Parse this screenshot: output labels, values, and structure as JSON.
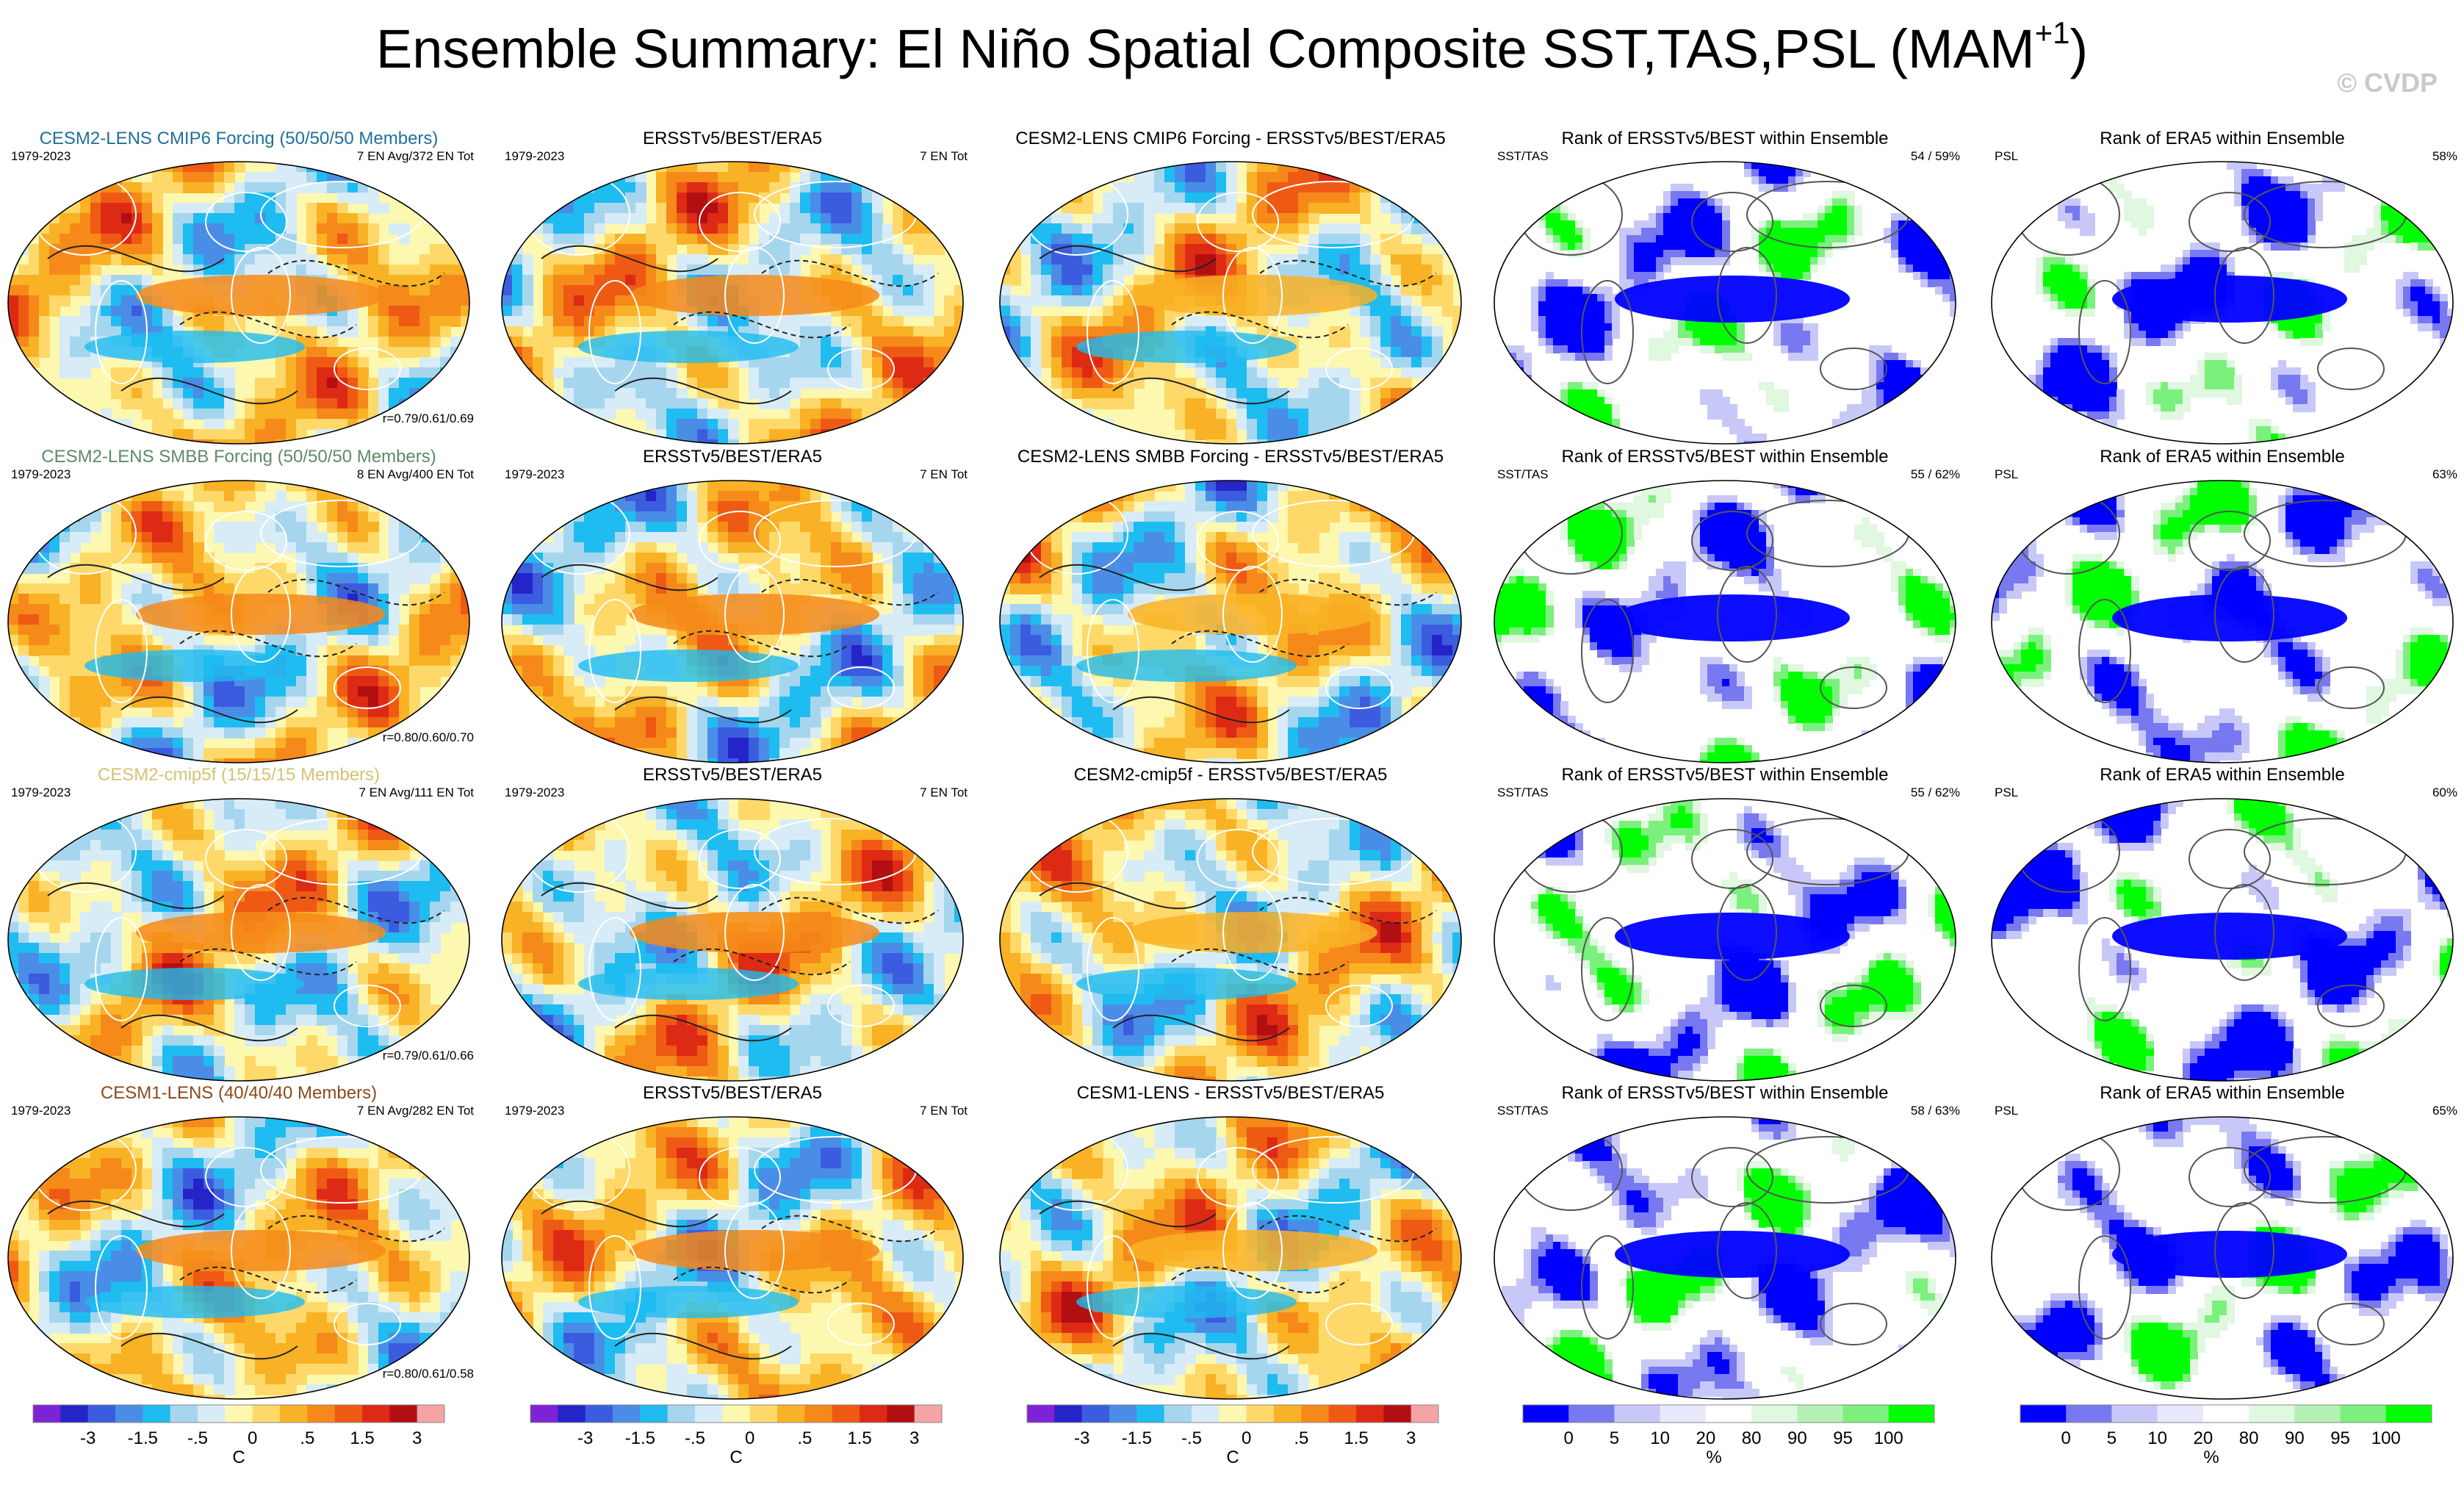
{
  "title": {
    "main": "Ensemble Summary: El Niño Spatial Composite SST,TAS,PSL (MAM",
    "superscript": "+1",
    "close": ")"
  },
  "copyright": "© CVDP",
  "colors": {
    "diverging": [
      "#7e22d6",
      "#2424c9",
      "#3c5ce0",
      "#4a8de6",
      "#1ebcf0",
      "#a6d6ee",
      "#d7ecf6",
      "#fdf8b0",
      "#fed96a",
      "#f9b225",
      "#f5891a",
      "#ee5a14",
      "#dd2a15",
      "#b20f12",
      "#f6a3a6"
    ],
    "rank": [
      "#0000ff",
      "#7878f0",
      "#c8c8f8",
      "#e9e9fc",
      "#ffffff",
      "#e0f7e0",
      "#b5f1b5",
      "#7cf07c",
      "#00ff00"
    ]
  },
  "rows": [
    {
      "model": {
        "title": "CESM2-LENS CMIP6 Forcing (50/50/50 Members)",
        "title_color": "#1f6f9c",
        "years": "1979-2023",
        "count": "7 EN Avg/372 EN Tot",
        "corr": "r=0.79/0.61/0.69"
      },
      "obs": {
        "title": "ERSSTv5/BEST/ERA5",
        "years": "1979-2023",
        "count": "7 EN Tot"
      },
      "diff": {
        "title": "CESM2-LENS CMIP6 Forcing - ERSSTv5/BEST/ERA5"
      },
      "rank_sst": {
        "title": "Rank of ERSSTv5/BEST within Ensemble",
        "left": "SST/TAS",
        "right": "54 /  59%"
      },
      "rank_psl": {
        "title": "Rank of ERA5 within Ensemble",
        "left": "PSL",
        "right": "58%"
      }
    },
    {
      "model": {
        "title": "CESM2-LENS SMBB Forcing (50/50/50 Members)",
        "title_color": "#5f8a64",
        "years": "1979-2023",
        "count": "8 EN Avg/400 EN Tot",
        "corr": "r=0.80/0.60/0.70"
      },
      "obs": {
        "title": "ERSSTv5/BEST/ERA5",
        "years": "1979-2023",
        "count": "7 EN Tot"
      },
      "diff": {
        "title": "CESM2-LENS SMBB Forcing - ERSSTv5/BEST/ERA5"
      },
      "rank_sst": {
        "title": "Rank of ERSSTv5/BEST within Ensemble",
        "left": "SST/TAS",
        "right": "55 /  62%"
      },
      "rank_psl": {
        "title": "Rank of ERA5 within Ensemble",
        "left": "PSL",
        "right": "63%"
      }
    },
    {
      "model": {
        "title": "CESM2-cmip5f (15/15/15 Members)",
        "title_color": "#d4c273",
        "years": "1979-2023",
        "count": "7 EN Avg/111 EN Tot",
        "corr": "r=0.79/0.61/0.66"
      },
      "obs": {
        "title": "ERSSTv5/BEST/ERA5",
        "years": "1979-2023",
        "count": "7 EN Tot"
      },
      "diff": {
        "title": "CESM2-cmip5f - ERSSTv5/BEST/ERA5"
      },
      "rank_sst": {
        "title": "Rank of ERSSTv5/BEST within Ensemble",
        "left": "SST/TAS",
        "right": "55 /  62%"
      },
      "rank_psl": {
        "title": "Rank of ERA5 within Ensemble",
        "left": "PSL",
        "right": "60%"
      }
    },
    {
      "model": {
        "title": "CESM1-LENS (40/40/40 Members)",
        "title_color": "#8a4a1a",
        "years": "1979-2023",
        "count": "7 EN Avg/282 EN Tot",
        "corr": "r=0.80/0.61/0.58"
      },
      "obs": {
        "title": "ERSSTv5/BEST/ERA5",
        "years": "1979-2023",
        "count": "7 EN Tot"
      },
      "diff": {
        "title": "CESM1-LENS - ERSSTv5/BEST/ERA5"
      },
      "rank_sst": {
        "title": "Rank of ERSSTv5/BEST within Ensemble",
        "left": "SST/TAS",
        "right": "58 /  63%"
      },
      "rank_psl": {
        "title": "Rank of ERA5 within Ensemble",
        "left": "PSL",
        "right": "65%"
      }
    }
  ],
  "colorbars": {
    "anomaly": {
      "labels": [
        "-3",
        "-1.5",
        "-.5",
        "0",
        ".5",
        "1.5",
        "3"
      ],
      "unit": "C"
    },
    "rank": {
      "labels": [
        "0",
        "5",
        "10",
        "20",
        "80",
        "90",
        "95",
        "100"
      ],
      "unit": "%"
    }
  },
  "chart_data": {
    "type": "heatmap",
    "title": "Ensemble Summary: El Niño Spatial Composite SST,TAS,PSL (MAM+1)",
    "grid": "4 rows x 5 columns of global Robinson-projection maps",
    "columns": [
      "Ensemble mean composite",
      "Observed composite (ERSSTv5/BEST/ERA5)",
      "Ensemble minus observed",
      "Rank of ERSSTv5/BEST within ensemble (SST/TAS)",
      "Rank of ERA5 within ensemble (PSL)"
    ],
    "rows": [
      "CESM2-LENS CMIP6 Forcing",
      "CESM2-LENS SMBB Forcing",
      "CESM2-cmip5f",
      "CESM1-LENS"
    ],
    "period": "1979-2023",
    "anomaly_colorbar_levels": [
      -3,
      -1.5,
      -0.5,
      0,
      0.5,
      1.5,
      3
    ],
    "anomaly_units": "C",
    "rank_colorbar_levels": [
      0,
      5,
      10,
      20,
      80,
      90,
      95,
      100
    ],
    "rank_units": "%",
    "rank_summary": [
      {
        "model": "CESM2-LENS CMIP6 Forcing",
        "sst_tas": [
          54,
          59
        ],
        "psl": 58
      },
      {
        "model": "CESM2-LENS SMBB Forcing",
        "sst_tas": [
          55,
          62
        ],
        "psl": 63
      },
      {
        "model": "CESM2-cmip5f",
        "sst_tas": [
          55,
          62
        ],
        "psl": 60
      },
      {
        "model": "CESM1-LENS",
        "sst_tas": [
          58,
          63
        ],
        "psl": 65
      }
    ],
    "pattern_correlations": [
      {
        "model": "CESM2-LENS CMIP6 Forcing",
        "sst": 0.79,
        "tas": 0.61,
        "psl": 0.69
      },
      {
        "model": "CESM2-LENS SMBB Forcing",
        "sst": 0.8,
        "tas": 0.6,
        "psl": 0.7
      },
      {
        "model": "CESM2-cmip5f",
        "sst": 0.79,
        "tas": 0.61,
        "psl": 0.66
      },
      {
        "model": "CESM1-LENS",
        "sst": 0.8,
        "tas": 0.61,
        "psl": 0.58
      }
    ]
  }
}
